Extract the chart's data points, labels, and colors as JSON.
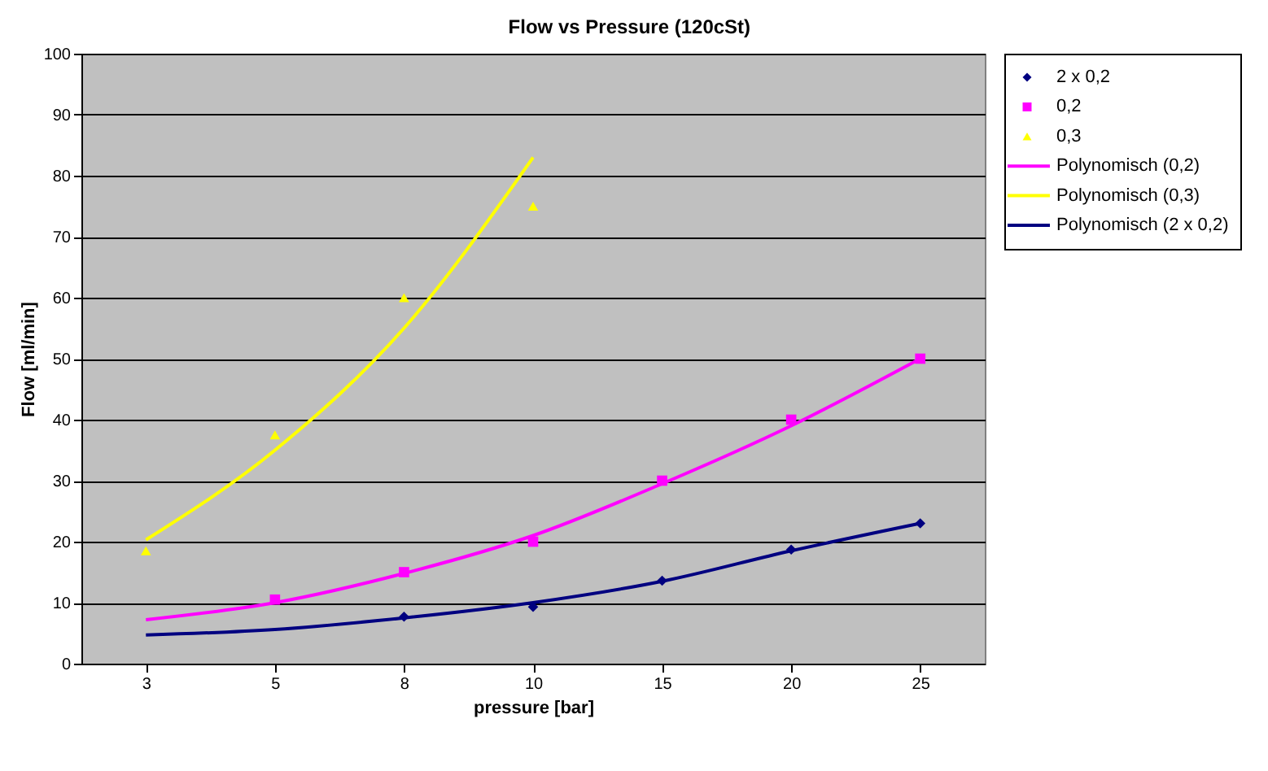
{
  "chart_data": {
    "type": "scatter",
    "title": "Flow vs Pressure (120cSt)",
    "xlabel": "pressure [bar]",
    "ylabel": "Flow [ml/min]",
    "categories": [
      "3",
      "5",
      "8",
      "10",
      "15",
      "20",
      "25"
    ],
    "series": [
      {
        "name": "2 x 0,2",
        "marker": "diamond",
        "color": "#000080",
        "values": [
          null,
          null,
          7.7,
          9.3,
          13.6,
          18.7,
          23
        ]
      },
      {
        "name": "0,2",
        "marker": "square",
        "color": "#ff00ff",
        "values": [
          null,
          10.5,
          15,
          20,
          30,
          40,
          50
        ]
      },
      {
        "name": "0,3",
        "marker": "triangle",
        "color": "#ffff00",
        "values": [
          18.5,
          37.5,
          60,
          75,
          null,
          null,
          null
        ]
      },
      {
        "name": "Polynomisch (0,2)",
        "type": "line",
        "marker": "none",
        "color": "#ff00ff",
        "values": [
          7.2,
          10,
          14.8,
          21,
          29.5,
          39,
          50
        ]
      },
      {
        "name": "Polynomisch (0,3)",
        "type": "line",
        "marker": "none",
        "color": "#ffff00",
        "values": [
          20.3,
          35,
          55,
          83,
          null,
          null,
          null
        ]
      },
      {
        "name": "Polynomisch (2 x 0,2)",
        "type": "line",
        "marker": "none",
        "color": "#000080",
        "values": [
          4.7,
          5.6,
          7.5,
          10,
          13.5,
          18.5,
          23
        ]
      }
    ],
    "ylim": [
      0,
      100
    ],
    "yticks": [
      0,
      10,
      20,
      30,
      40,
      50,
      60,
      70,
      80,
      90,
      100
    ],
    "grid": "y",
    "legend": "right"
  }
}
